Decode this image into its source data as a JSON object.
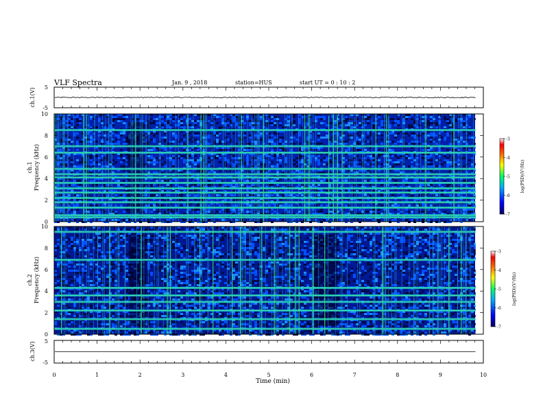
{
  "header": {
    "title": "VLF Spectra",
    "date": "Jan. 9 , 2018",
    "station": "station=HUS",
    "start": "start UT =  0 : 10 : 2"
  },
  "chart_data": [
    {
      "type": "line",
      "panel": "ch1-waveform",
      "ylabel": "ch.1(V)",
      "ylim": [
        -5,
        5
      ],
      "yticks": [
        "5",
        "-5"
      ],
      "trace_level": 0.0,
      "trace_noise": 0.25
    },
    {
      "type": "heatmap",
      "panel": "ch1-spectrogram",
      "ylabel": "ch.1",
      "ylabel2": "Frequency  (kHz)",
      "ylim": [
        0,
        10
      ],
      "yticks": [
        "0",
        "2",
        "4",
        "6",
        "8",
        "10"
      ],
      "bands_khz": [
        0.4,
        0.6,
        1.3,
        1.8,
        2.2,
        2.7,
        3.1,
        3.6,
        4.1,
        4.4,
        4.9,
        6.4,
        7.0,
        8.5
      ],
      "colorbar": {
        "label": "log(PSD)(V²/Hz)",
        "ticks": [
          "-3",
          "-4",
          "-5",
          "-6",
          "-7"
        ],
        "range": [
          -7,
          -3
        ]
      }
    },
    {
      "type": "heatmap",
      "panel": "ch2-spectrogram",
      "ylabel": "ch.2",
      "ylabel2": "Frequency  (kHz)",
      "ylim": [
        0,
        10
      ],
      "yticks": [
        "0",
        "2",
        "4",
        "6",
        "8",
        "10"
      ],
      "bands_khz": [
        0.5,
        1.4,
        2.2,
        3.0,
        3.6,
        4.3,
        6.9,
        9.5
      ],
      "colorbar": {
        "label": "log(PSD)(V²/Hz)",
        "ticks": [
          "-3",
          "-4",
          "-5",
          "-6",
          "-7"
        ],
        "range": [
          -7,
          -3
        ]
      }
    },
    {
      "type": "line",
      "panel": "ch3-waveform",
      "ylabel": "ch.3(V)",
      "ylim": [
        -5,
        5
      ],
      "yticks": [
        "5",
        "-5"
      ],
      "trace_level": 0.0,
      "trace_noise": 0.0
    }
  ],
  "xaxis": {
    "label": "Time  (min)",
    "range": [
      0,
      10
    ],
    "ticks": [
      "0",
      "1",
      "2",
      "3",
      "4",
      "5",
      "6",
      "7",
      "8",
      "9",
      "10"
    ],
    "data_end": 9.82
  },
  "colors": {
    "spec_low": "#000033",
    "spec_mid": "#0040ff",
    "spec_band": "#33cc99",
    "spec_high": "#ff0000"
  }
}
